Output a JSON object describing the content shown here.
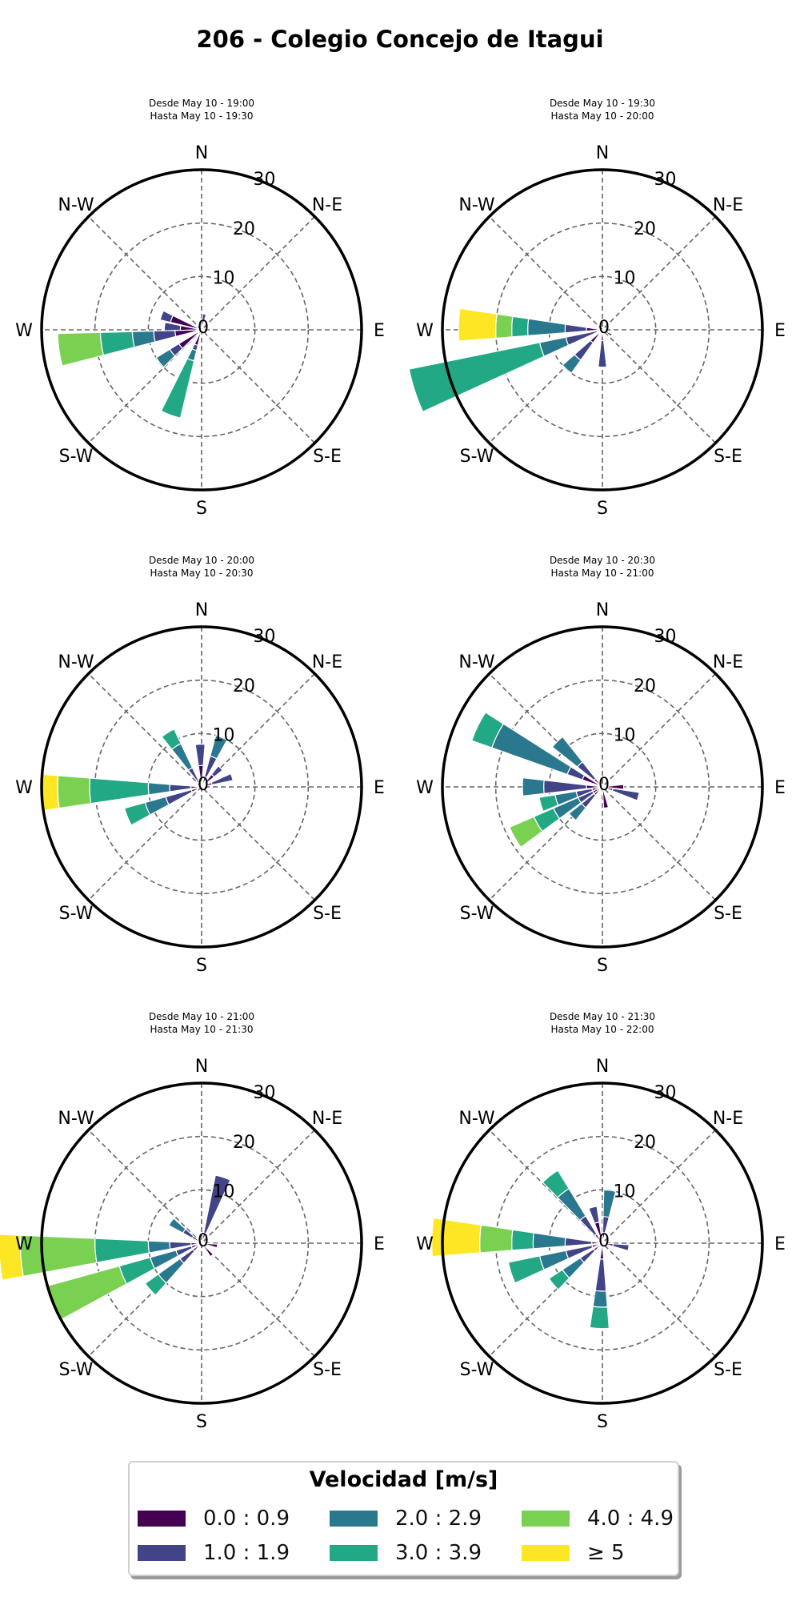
{
  "title": "206 - Colegio Concejo de Itagui",
  "legend": {
    "title": "Velocidad [m/s]",
    "items": [
      {
        "label": "0.0 : 0.9",
        "color": "#440154"
      },
      {
        "label": "1.0 : 1.9",
        "color": "#414487"
      },
      {
        "label": "2.0 : 2.9",
        "color": "#2a788e"
      },
      {
        "label": "3.0 : 3.9",
        "color": "#22a884"
      },
      {
        "label": "4.0 : 4.9",
        "color": "#7ad151"
      },
      {
        "label": "≥  5",
        "color": "#fde725"
      }
    ]
  },
  "chart_data": [
    {
      "type": "windrose",
      "subtitle": [
        "Desde May 10 - 19:00",
        "Hasta May 10 - 19:30"
      ],
      "direction_labels": [
        "N",
        "N-E",
        "E",
        "S-E",
        "S",
        "S-W",
        "W",
        "N-W"
      ],
      "radial_ticks": [
        0,
        10,
        20,
        30
      ],
      "rmax": 30,
      "sectors": [
        {
          "dir": 290,
          "stack": [
            6,
            2
          ]
        },
        {
          "dir": 275,
          "stack": [
            4,
            3
          ]
        },
        {
          "dir": 262,
          "stack": [
            5,
            4,
            4,
            6,
            8
          ]
        },
        {
          "dir": 232,
          "stack": [
            5,
            2,
            3
          ]
        },
        {
          "dir": 200,
          "stack": [
            3,
            1,
            2,
            11
          ]
        },
        {
          "dir": 10,
          "stack": [
            1,
            2
          ]
        },
        {
          "dir": 150,
          "stack": [
            1
          ]
        }
      ]
    },
    {
      "type": "windrose",
      "subtitle": [
        "Desde May 10 - 19:30",
        "Hasta May 10 - 20:00"
      ],
      "direction_labels": [
        "N",
        "N-E",
        "E",
        "S-E",
        "S",
        "S-W",
        "W",
        "N-W"
      ],
      "radial_ticks": [
        0,
        10,
        20,
        30
      ],
      "rmax": 30,
      "sectors": [
        {
          "dir": 272,
          "stack": [
            3,
            4,
            7,
            3,
            3,
            7
          ]
        },
        {
          "dir": 252,
          "stack": [
            1,
            6,
            5,
            25
          ]
        },
        {
          "dir": 222,
          "stack": [
            3,
            4,
            3
          ]
        },
        {
          "dir": 180,
          "stack": [
            2,
            5
          ]
        },
        {
          "dir": 120,
          "stack": [
            2
          ]
        }
      ]
    },
    {
      "type": "windrose",
      "subtitle": [
        "Desde May 10 - 20:00",
        "Hasta May 10 - 20:30"
      ],
      "direction_labels": [
        "N",
        "N-E",
        "E",
        "S-E",
        "S",
        "S-W",
        "W",
        "N-W"
      ],
      "radial_ticks": [
        0,
        10,
        20,
        30
      ],
      "rmax": 30,
      "sectors": [
        {
          "dir": 268,
          "stack": [
            2,
            4,
            4,
            11,
            6,
            3
          ]
        },
        {
          "dir": 248,
          "stack": [
            2,
            5,
            4,
            4
          ]
        },
        {
          "dir": 328,
          "stack": [
            1,
            3,
            5,
            3
          ]
        },
        {
          "dir": 358,
          "stack": [
            4,
            4
          ]
        },
        {
          "dir": 22,
          "stack": [
            2,
            4,
            4
          ]
        },
        {
          "dir": 72,
          "stack": [
            2,
            4
          ]
        },
        {
          "dir": 45,
          "stack": [
            3,
            2
          ]
        }
      ]
    },
    {
      "type": "windrose",
      "subtitle": [
        "Desde May 10 - 20:30",
        "Hasta May 10 - 21:00"
      ],
      "direction_labels": [
        "N",
        "N-E",
        "E",
        "S-E",
        "S",
        "S-W",
        "W",
        "N-W"
      ],
      "radial_ticks": [
        0,
        10,
        20,
        30
      ],
      "rmax": 30,
      "sectors": [
        {
          "dir": 296,
          "stack": [
            4,
            3,
            15,
            4
          ]
        },
        {
          "dir": 315,
          "stack": [
            2,
            4,
            6
          ]
        },
        {
          "dir": 270,
          "stack": [
            3,
            8,
            4
          ]
        },
        {
          "dir": 254,
          "stack": [
            2,
            3,
            4,
            3
          ]
        },
        {
          "dir": 240,
          "stack": [
            2,
            3,
            5,
            4,
            5
          ]
        },
        {
          "dir": 225,
          "stack": [
            2,
            3,
            3
          ]
        },
        {
          "dir": 105,
          "stack": [
            2,
            5
          ]
        },
        {
          "dir": 170,
          "stack": [
            4
          ]
        },
        {
          "dir": 90,
          "stack": [
            4
          ]
        }
      ]
    },
    {
      "type": "windrose",
      "subtitle": [
        "Desde May 10 - 21:00",
        "Hasta May 10 - 21:30"
      ],
      "direction_labels": [
        "N",
        "N-E",
        "E",
        "S-E",
        "S",
        "S-W",
        "W",
        "N-W"
      ],
      "radial_ticks": [
        0,
        10,
        20,
        30
      ],
      "rmax": 30,
      "sectors": [
        {
          "dir": 266,
          "stack": [
            2,
            4,
            4,
            10,
            14,
            4
          ]
        },
        {
          "dir": 248,
          "stack": [
            2,
            3,
            5,
            6,
            14
          ]
        },
        {
          "dir": 228,
          "stack": [
            2,
            3,
            5,
            3
          ]
        },
        {
          "dir": 18,
          "stack": [
            2,
            11
          ]
        },
        {
          "dir": 305,
          "stack": [
            2,
            2,
            3
          ]
        },
        {
          "dir": 140,
          "stack": [
            3
          ]
        },
        {
          "dir": 100,
          "stack": [
            3
          ]
        }
      ]
    },
    {
      "type": "windrose",
      "subtitle": [
        "Desde May 10 - 21:30",
        "Hasta May 10 - 22:00"
      ],
      "direction_labels": [
        "N",
        "N-E",
        "E",
        "S-E",
        "S",
        "S-W",
        "W",
        "N-W"
      ],
      "radial_ticks": [
        0,
        10,
        20,
        30
      ],
      "rmax": 30,
      "sectors": [
        {
          "dir": 272,
          "stack": [
            2,
            5,
            6,
            4,
            6,
            9
          ]
        },
        {
          "dir": 252,
          "stack": [
            2,
            5,
            5,
            6
          ]
        },
        {
          "dir": 230,
          "stack": [
            2,
            3,
            4,
            3
          ]
        },
        {
          "dir": 182,
          "stack": [
            3,
            6,
            3,
            4
          ]
        },
        {
          "dir": 322,
          "stack": [
            2,
            4,
            6,
            4
          ]
        },
        {
          "dir": 345,
          "stack": [
            4,
            3
          ]
        },
        {
          "dir": 8,
          "stack": [
            2,
            3,
            5
          ]
        },
        {
          "dir": 100,
          "stack": [
            2,
            3
          ]
        }
      ]
    }
  ]
}
